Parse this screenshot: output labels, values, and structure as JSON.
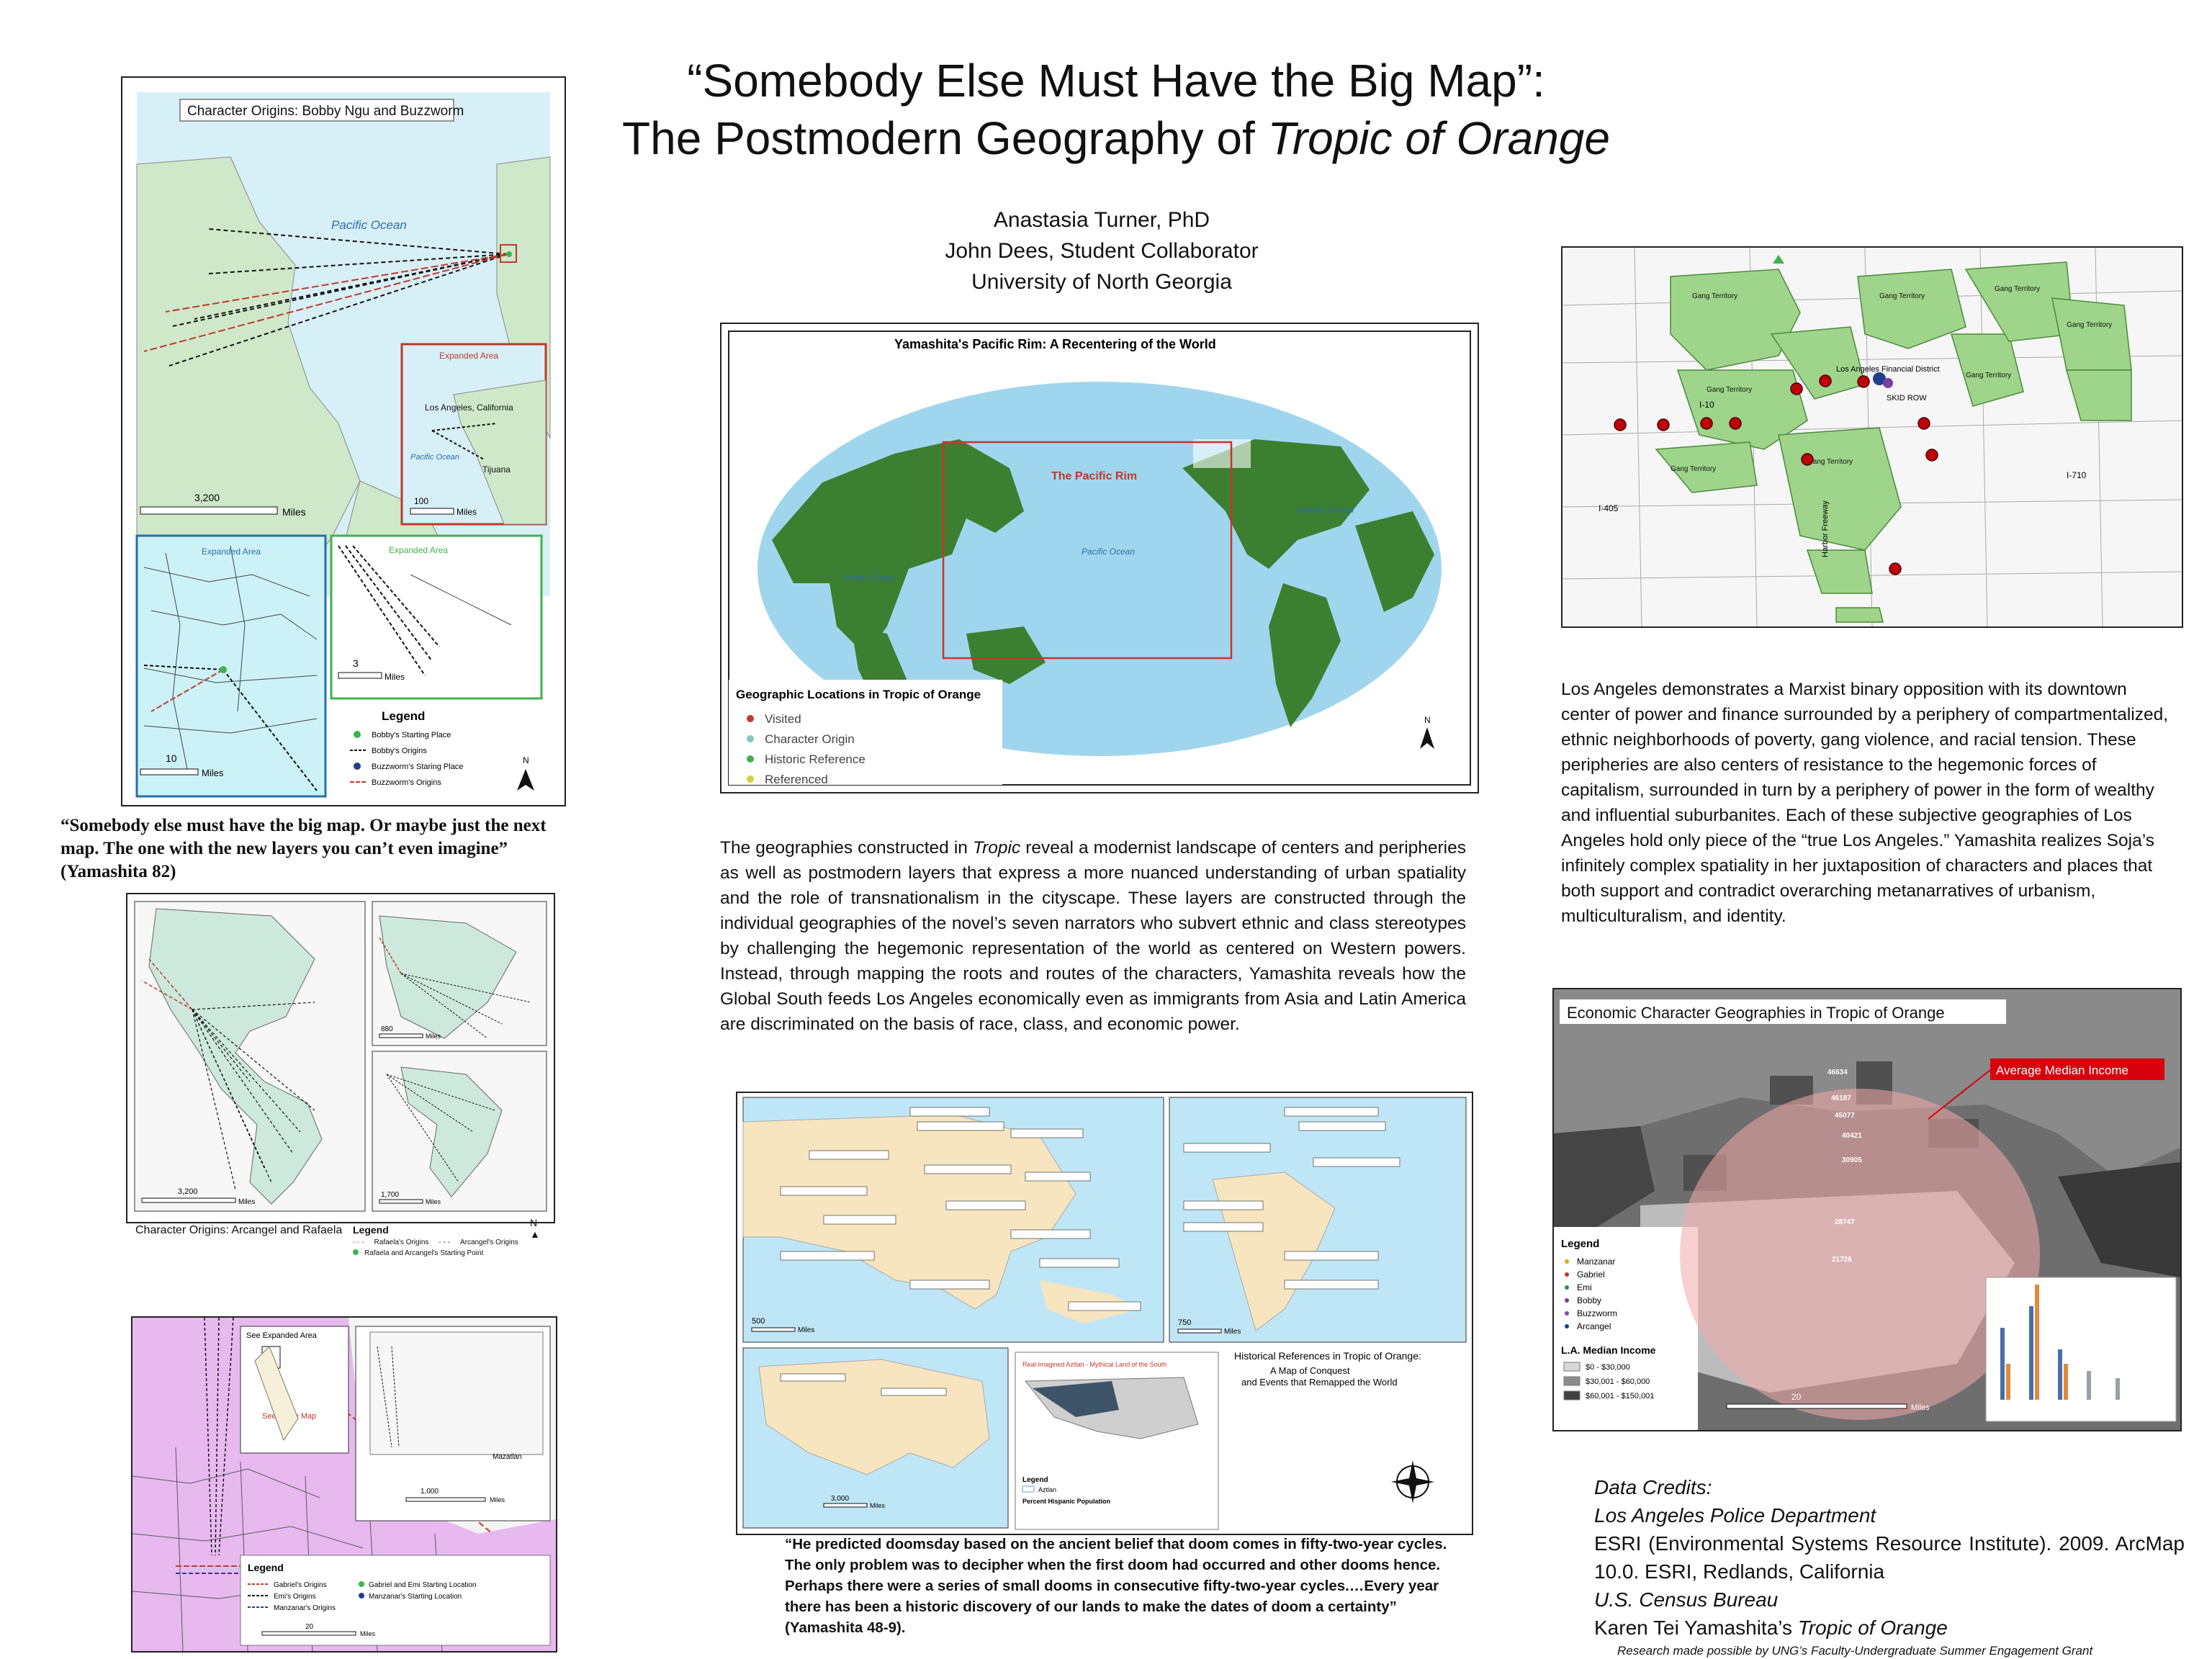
{
  "title": {
    "line1": "“Somebody Else Must Have the Big Map”:",
    "line2_prefix": "The Postmodern Geography of ",
    "line2_italic": "Tropic of Orange"
  },
  "authors": [
    "Anastasia Turner, PhD",
    "John Dees, Student Collaborator",
    "University of North Georgia"
  ],
  "map_bobby": {
    "title": "Character Origins: Bobby Ngu and Buzzworm",
    "ocean_label": "Pacific Ocean",
    "expanded_area": "Expanded Area",
    "la_label": "Los Angeles, California",
    "pacific_small": "Pacific Ocean",
    "tijuana": "Tijuana",
    "scale_main": "3,200",
    "scale_main_unit": "Miles",
    "scale_inset": "100",
    "scale_inset_unit": "Miles",
    "inset_blue_label": "Expanded Area",
    "inset_green_label": "Expanded Area",
    "scale_blue": "10",
    "scale_blue_unit": "Miles",
    "scale_green": "3",
    "scale_green_unit": "Miles",
    "legend_title": "Legend",
    "legend": [
      "Bobby's Starting Place",
      "Bobby's Origins",
      "Buzzworm's Staring Place",
      "Buzzworm's Origins"
    ]
  },
  "quote_left": "“Somebody else must have the big map. Or maybe just the next map. The one with the new layers you can’t even imagine” (Yamashita 82)",
  "map_arcangel": {
    "caption": "Character Origins: Arcangel and Rafaela",
    "scale_main": "3,200",
    "scale_main_unit": "Miles",
    "scale_a": "880",
    "scale_a_unit": "Miles",
    "scale_b": "1,700",
    "scale_b_unit": "Miles",
    "legend_title": "Legend",
    "legend": [
      "Rafaela's Origins",
      "Arcangel's Origins",
      "Rafaela and Arcangel's Starting Point"
    ]
  },
  "map_manzanar": {
    "see_expanded": "See Expanded Area",
    "see_large": "See Large Map",
    "scale": "1,000",
    "scale_unit": "Miles",
    "scale_small": "20",
    "scale_small_unit": "Miles",
    "mazatlan": "Mazatlan",
    "legend_title": "Legend",
    "legend": [
      "Gabriel's Origins",
      "Emi's Origins",
      "Manzanar's Origins",
      "Gabriel and Emi Starting Location",
      "Manzanar's Starting Location"
    ]
  },
  "map_world": {
    "title": "Yamashita's Pacific Rim: A Recentering of the World",
    "pacific_rim": "The Pacific Rim",
    "pacific_ocean": "Pacific Ocean",
    "atlantic_ocean": "Atlantic Ocean",
    "indian_ocean": "Indian Ocean",
    "legend_title": "Geographic Locations in Tropic of Orange",
    "legend": [
      {
        "label": "Visited",
        "color": "#c0392b"
      },
      {
        "label": "Character Origin",
        "color": "#7fc8c0"
      },
      {
        "label": "Historic Reference",
        "color": "#3cb44b"
      },
      {
        "label": "Referenced",
        "color": "#d4d040"
      }
    ]
  },
  "center_paragraph": {
    "part1": "The geographies constructed in ",
    "italic": "Tropic",
    "part2": " reveal a modernist landscape of centers and peripheries as well as postmodern layers that express a more nuanced understanding of urban spatiality and the role of transnationalism in the cityscape.  These layers are constructed through the individual geographies of the novel’s seven narrators who subvert ethnic and class stereotypes by challenging the hegemonic representation of the world as centered on Western powers.  Instead, through mapping the roots and routes of the characters, Yamashita reveals how the Global South feeds Los Angeles economically even as immigrants from Asia and Latin America are discriminated on the basis of race, class, and economic power."
  },
  "map_history": {
    "title_line1": "Historical References in Tropic of Orange:",
    "title_line2": "A Map of Conquest",
    "title_line3": "and Events that Remapped the World",
    "red_label": "Real-Imagined Aztlan - Mythical Land of the South",
    "scale_a": "500",
    "scale_a_unit": "Miles",
    "scale_b": "750",
    "scale_b_unit": "Miles",
    "scale_c": "3,000",
    "scale_c_unit": "Miles",
    "legend_title": "Legend",
    "legend_aztlan": "Aztlan",
    "legend_hispanic": "Percent Hispanic Population"
  },
  "quote_bottom": "“He predicted doomsday based on the ancient belief that doom comes in fifty-two-year cycles. The only problem was to decipher when the first doom had occurred and other dooms hence. Perhaps there were a series of small dooms in consecutive fifty-two-year cycles.…Every year there has been a historic discovery of our lands to make the dates of doom a certainty” (Yamashita 48-9).",
  "map_la": {
    "gang": "Gang Territory",
    "financial": "Los Angeles Financial District",
    "skid_row": "SKID ROW",
    "i10": "I-10",
    "i405": "I-405",
    "i710": "I-710",
    "harbor": "Harbor Freeway"
  },
  "right_paragraph": "Los Angeles demonstrates a Marxist binary opposition with its downtown center of power and finance surrounded by a periphery of compartmentalized,  ethnic neighborhoods of poverty, gang violence, and racial tension.  These peripheries are also centers of resistance to the hegemonic forces of capitalism,  surrounded in turn by a periphery of power in the form of wealthy and influential suburbanites. Each of these subjective geographies of Los Angeles hold only piece of the “true Los Angeles.”  Yamashita  realizes Soja’s infinitely complex spatiality in her juxtaposition of characters and places that both support and contradict overarching metanarratives  of urbanism, multiculturalism,  and identity.",
  "map_econ": {
    "title": "Economic Character Geographies in Tropic of Orange",
    "callout": "Average Median Income",
    "incomes": [
      "46634",
      "46187",
      "45077",
      "40421",
      "30905",
      "28747",
      "21726"
    ],
    "legend_title": "Legend",
    "characters": [
      {
        "label": "Manzanar",
        "color": "#e8a317"
      },
      {
        "label": "Gabriel",
        "color": "#c0392b"
      },
      {
        "label": "Emi",
        "color": "#2e8b57"
      },
      {
        "label": "Bobby",
        "color": "#7a3fa0"
      },
      {
        "label": "Buzzworm",
        "color": "#8e44ad"
      },
      {
        "label": "Arcangel",
        "color": "#1f3f8f"
      }
    ],
    "income_title": "L.A. Median Income",
    "income_classes": [
      {
        "label": "$0 - $30,000",
        "color": "#d8d8d8"
      },
      {
        "label": "$30,001 - $60,000",
        "color": "#8c8c8c"
      },
      {
        "label": "$60,001 - $150,001",
        "color": "#404040"
      }
    ],
    "scale": "20",
    "scale_unit": "Miles"
  },
  "credits": {
    "heading": "Data Credits:",
    "lapd": "Los Angeles Police Department",
    "esri": "ESRI (Environmental Systems Resource Institute). 2009. ArcMap 10.0. ESRI, Redlands, California",
    "census": "U.S. Census Bureau",
    "yamashita_prefix": "Karen Tei Yamashita’s ",
    "yamashita_italic": "Tropic of Orange"
  },
  "footer": "Research made possible by UNG’s Faculty-Undergraduate Summer Engagement Grant"
}
